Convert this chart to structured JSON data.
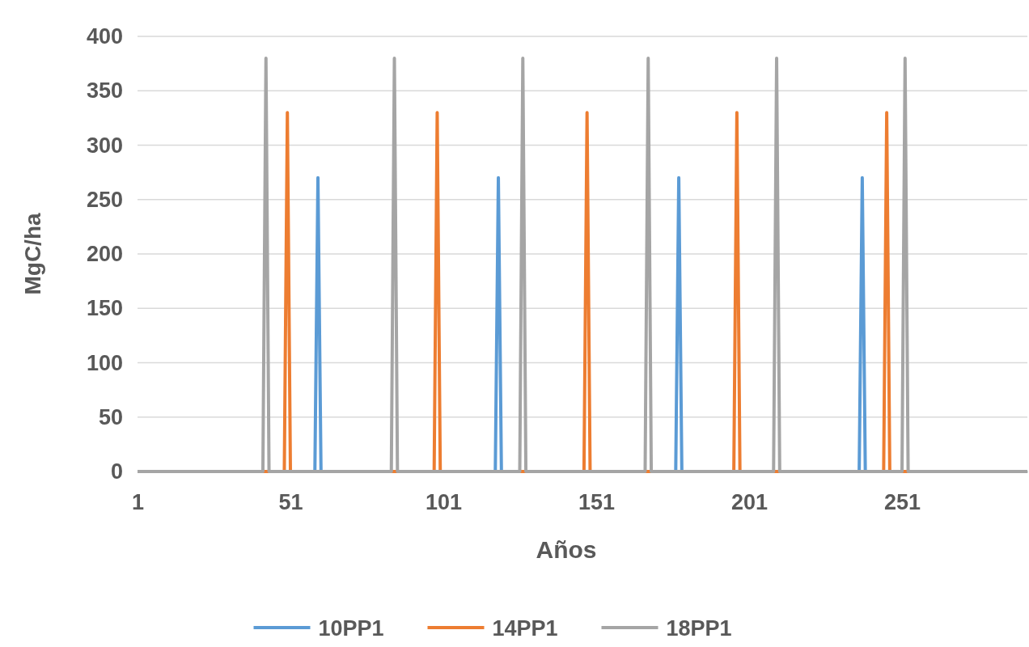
{
  "chart_data": {
    "type": "line",
    "xlabel": "Años",
    "ylabel": "MgC/ha",
    "xlim": [
      1,
      292
    ],
    "xticks": [
      1,
      51,
      101,
      151,
      201,
      251
    ],
    "ylim": [
      0,
      400
    ],
    "yticks": [
      0,
      50,
      100,
      150,
      200,
      250,
      300,
      350,
      400
    ],
    "grid": "y",
    "legend": "bottom",
    "marker": "none",
    "series": [
      {
        "name": "10PP1",
        "color": "#5b9bd5",
        "x": [
          1,
          59,
          60,
          61,
          118,
          119,
          120,
          177,
          178,
          179,
          237,
          238,
          239,
          292
        ],
        "values": [
          0,
          0,
          270,
          0,
          0,
          270,
          0,
          0,
          270,
          0,
          0,
          270,
          0,
          0
        ]
      },
      {
        "name": "14PP1",
        "color": "#ed7d31",
        "x": [
          1,
          49,
          50,
          51,
          98,
          99,
          100,
          147,
          148,
          149,
          196,
          197,
          198,
          245,
          246,
          247,
          292
        ],
        "values": [
          0,
          0,
          330,
          0,
          0,
          330,
          0,
          0,
          330,
          0,
          0,
          330,
          0,
          0,
          330,
          0,
          0
        ]
      },
      {
        "name": "18PP1",
        "color": "#a5a5a5",
        "x": [
          1,
          42,
          43,
          44,
          84,
          85,
          86,
          126,
          127,
          128,
          167,
          168,
          169,
          209,
          210,
          211,
          251,
          252,
          253,
          292
        ],
        "values": [
          0,
          0,
          380,
          0,
          0,
          380,
          0,
          0,
          380,
          0,
          0,
          380,
          0,
          0,
          380,
          0,
          0,
          380,
          0,
          0
        ]
      }
    ]
  }
}
